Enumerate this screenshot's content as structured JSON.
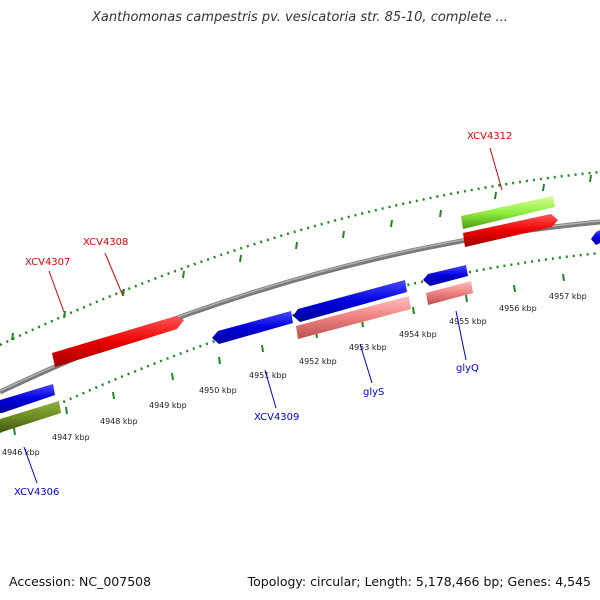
{
  "title": "Xanthomonas campestris pv. vesicatoria str. 85-10, complete ...",
  "footer": {
    "accession": "Accession: NC_007508",
    "summary": "Topology: circular; Length: 5,178,466 bp; Genes: 4,545"
  },
  "ticks": [
    "4946 kbp",
    "4947 kbp",
    "4948 kbp",
    "4949 kbp",
    "4950 kbp",
    "4951 kbp",
    "4952 kbp",
    "4953 kbp",
    "4954 kbp",
    "4955 kbp",
    "4956 kbp",
    "4957 kbp"
  ],
  "gene_labels": [
    {
      "name": "XCV4306",
      "color": "#0000cc"
    },
    {
      "name": "XCV4307",
      "color": "#dd0000"
    },
    {
      "name": "XCV4308",
      "color": "#dd0000"
    },
    {
      "name": "XCV4309",
      "color": "#0000cc"
    },
    {
      "name": "glyS",
      "color": "#0000cc"
    },
    {
      "name": "glyQ",
      "color": "#0000cc"
    },
    {
      "name": "XCV4312",
      "color": "#dd0000"
    }
  ],
  "colors": {
    "backbone": "#888888",
    "tick_marks": "#228b22",
    "forward_cds": "#ee0000",
    "reverse_cds": "#0000dd",
    "rna": "#f08080",
    "green_feature": "#6b8e23",
    "lime_feature": "#7fff00"
  }
}
